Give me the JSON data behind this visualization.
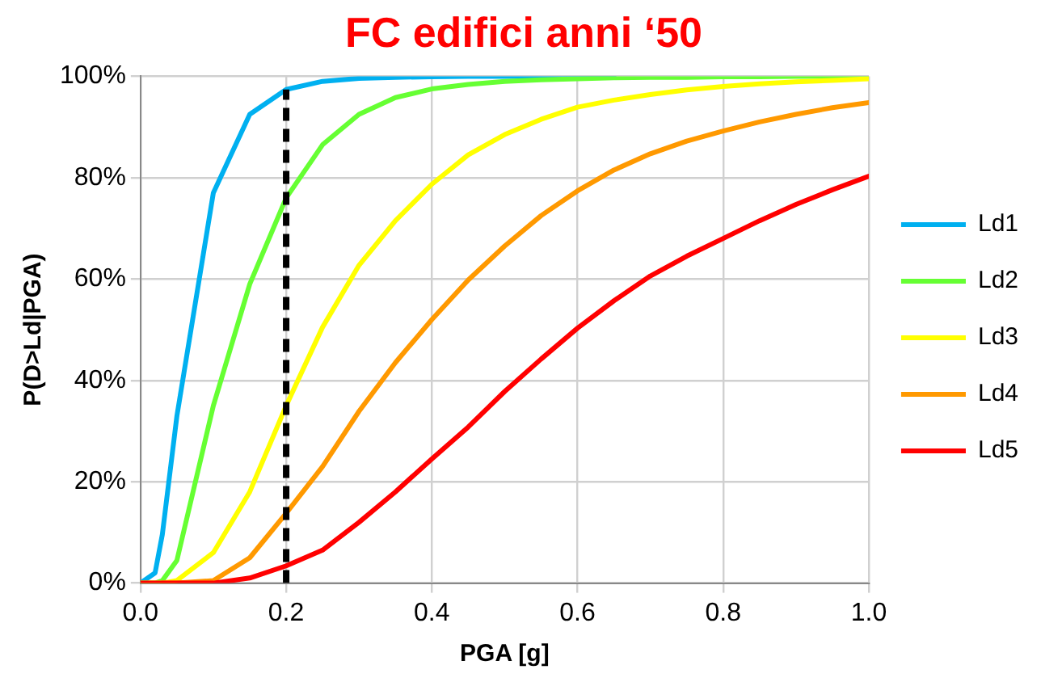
{
  "chart_data": {
    "type": "line",
    "title": "FC edifici anni ‘50",
    "xlabel": "PGA [g]",
    "ylabel": "P(D>Ld|PGA)",
    "x": [
      0,
      0.02,
      0.03,
      0.05,
      0.1,
      0.15,
      0.2,
      0.25,
      0.3,
      0.35,
      0.4,
      0.45,
      0.5,
      0.55,
      0.6,
      0.65,
      0.7,
      0.75,
      0.8,
      0.85,
      0.9,
      0.95,
      1.0
    ],
    "series": [
      {
        "name": "Ld1",
        "color": "#00b0f0",
        "values": [
          0,
          2,
          9.6,
          33,
          77,
          92.5,
          97.4,
          99,
          99.6,
          99.8,
          99.9,
          100,
          100,
          100,
          100,
          100,
          null,
          null,
          null,
          null,
          null,
          null,
          null
        ]
      },
      {
        "name": "Ld2",
        "color": "#66ff33",
        "values": [
          0,
          0,
          0.5,
          4.5,
          35,
          59,
          76,
          86.5,
          92.5,
          95.8,
          97.5,
          98.4,
          99,
          99.3,
          99.5,
          99.7,
          99.8,
          99.8,
          99.9,
          99.9,
          100,
          100,
          100
        ]
      },
      {
        "name": "Ld3",
        "color": "#ffff00",
        "values": [
          0,
          0,
          0,
          0.5,
          6,
          18,
          35,
          50.5,
          62.7,
          71.5,
          78.7,
          84.5,
          88.5,
          91.5,
          93.9,
          95.3,
          96.4,
          97.3,
          98,
          98.5,
          98.9,
          99.2,
          99.5
        ]
      },
      {
        "name": "Ld4",
        "color": "#ff9900",
        "values": [
          null,
          null,
          0,
          0,
          0.5,
          5,
          13.8,
          23,
          33.9,
          43.5,
          52,
          59.8,
          66.5,
          72.5,
          77.4,
          81.5,
          84.7,
          87.2,
          89.2,
          91,
          92.5,
          93.8,
          94.8
        ]
      },
      {
        "name": "Ld5",
        "color": "#ff0000",
        "values": [
          0,
          0,
          0,
          0,
          0,
          1,
          3.4,
          6.5,
          12,
          18,
          24.5,
          30.8,
          37.8,
          44.2,
          50.3,
          55.7,
          60.6,
          64.5,
          68,
          71.5,
          74.7,
          77.6,
          80.3
        ]
      },
      {
        "type": "line",
        "color": "#000000",
        "line_style": "dashed",
        "x": [
          0.2,
          0.2
        ],
        "values": [
          0,
          97.4
        ]
      }
    ],
    "xlim": [
      0,
      1
    ],
    "xticks": [
      {
        "value": 0,
        "label": "0.0"
      },
      0.2,
      0.4,
      0.6,
      0.8,
      {
        "value": 1,
        "label": "1.0"
      }
    ],
    "ylim": [
      0,
      100
    ],
    "yticks": [
      {
        "value": 0,
        "label": "0%"
      },
      {
        "value": 20,
        "label": "20%"
      },
      {
        "value": 40,
        "label": "40%"
      },
      {
        "value": 60,
        "label": "60%"
      },
      {
        "value": 80,
        "label": "80%"
      },
      {
        "value": 100,
        "label": "100%"
      }
    ],
    "grid": true,
    "legend": "right",
    "marker": "none",
    "line_style": "solid"
  }
}
